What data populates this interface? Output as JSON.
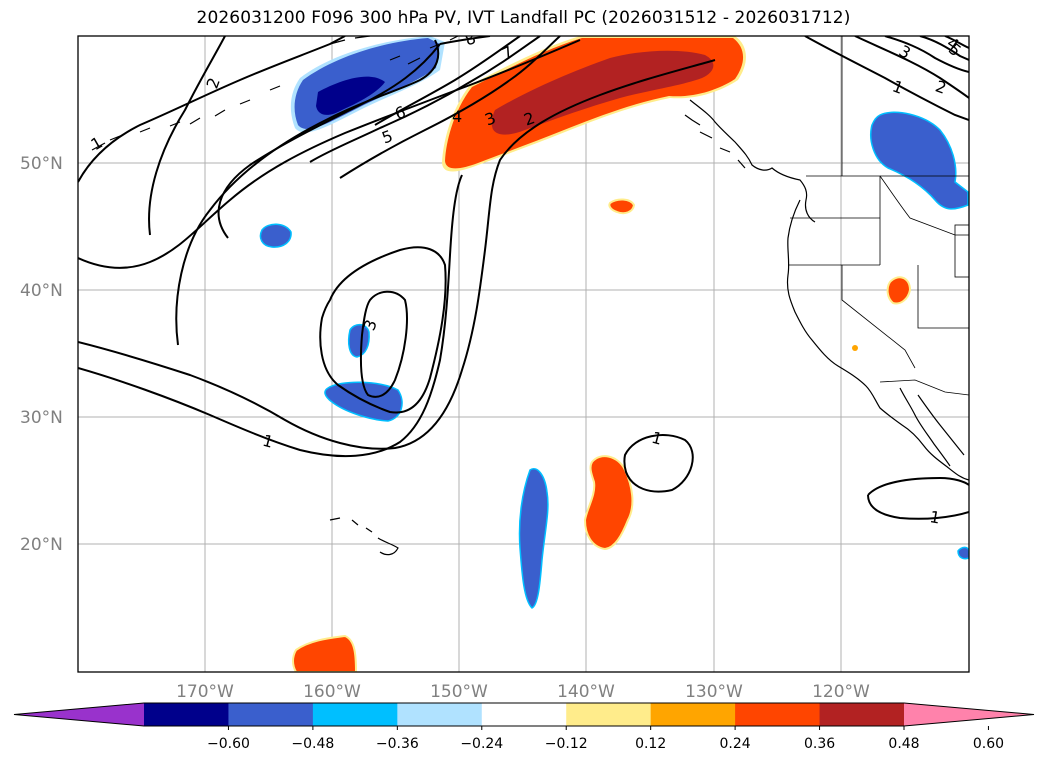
{
  "title": "2026031200 F096 300 hPa PV, IVT Landfall PC (2026031512 - 2026031712)",
  "lat_labels": [
    "50°N",
    "40°N",
    "30°N",
    "20°N"
  ],
  "lon_labels": [
    "170°W",
    "160°W",
    "150°W",
    "140°W",
    "130°W",
    "120°W"
  ],
  "colorbar": {
    "ticks": [
      "−0.60",
      "−0.48",
      "−0.36",
      "−0.24",
      "−0.12",
      "0.12",
      "0.24",
      "0.36",
      "0.48",
      "0.60"
    ],
    "colors": [
      "#9932cc",
      "#00008b",
      "#3a5fcd",
      "#00bfff",
      "#b0e2ff",
      "#ffffff",
      "#ffec8b",
      "#ffa500",
      "#ff4500",
      "#b22222",
      "#ff82ab"
    ]
  },
  "contour_labels": [
    "1",
    "2",
    "3",
    "4",
    "5",
    "6",
    "7",
    "8",
    "1",
    "2",
    "3",
    "4",
    "5",
    "1",
    "1",
    "1",
    "3",
    "2",
    "1",
    "2"
  ],
  "colors": {
    "grid": "#b0b0b0",
    "axis_text": "#808080",
    "frame": "#000000"
  }
}
